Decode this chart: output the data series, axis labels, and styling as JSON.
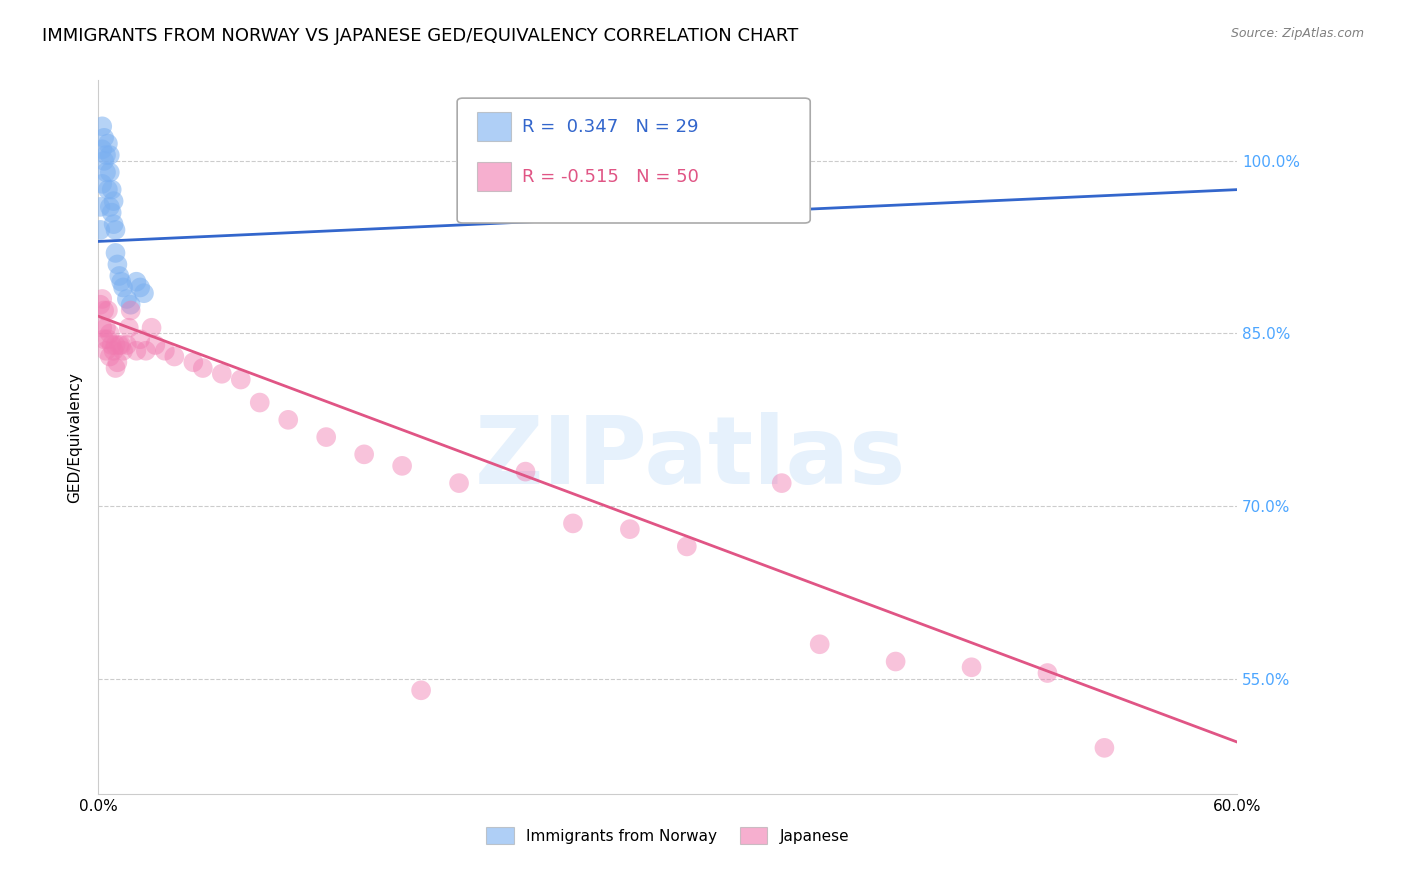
{
  "title": "IMMIGRANTS FROM NORWAY VS JAPANESE GED/EQUIVALENCY CORRELATION CHART",
  "source": "Source: ZipAtlas.com",
  "ylabel": "GED/Equivalency",
  "legend_norway_label": "Immigrants from Norway",
  "legend_japanese_label": "Japanese",
  "norway_R": 0.347,
  "norway_N": 29,
  "japanese_R": -0.515,
  "japanese_N": 50,
  "norway_color": "#7aaff0",
  "japanese_color": "#f07ab0",
  "norway_line_color": "#3366cc",
  "japanese_line_color": "#e05585",
  "right_axis_color": "#4da6ff",
  "watermark": "ZIPatlas",
  "background_color": "#ffffff",
  "grid_color": "#cccccc",
  "title_fontsize": 13,
  "label_fontsize": 11,
  "tick_fontsize": 11,
  "xlim": [
    0.0,
    0.6
  ],
  "ylim": [
    0.45,
    1.07
  ],
  "ytick_vals": [
    0.55,
    0.7,
    0.85,
    1.0
  ],
  "ytick_labels": [
    "55.0%",
    "70.0%",
    "85.0%",
    "100.0%"
  ],
  "norway_x": [
    0.001,
    0.001,
    0.002,
    0.002,
    0.002,
    0.003,
    0.003,
    0.004,
    0.004,
    0.005,
    0.005,
    0.006,
    0.006,
    0.006,
    0.007,
    0.007,
    0.008,
    0.008,
    0.009,
    0.009,
    0.01,
    0.011,
    0.012,
    0.013,
    0.015,
    0.017,
    0.02,
    0.022,
    0.024
  ],
  "norway_y": [
    0.96,
    0.94,
    1.03,
    1.01,
    0.98,
    1.02,
    1.0,
    1.005,
    0.99,
    1.015,
    0.975,
    1.005,
    0.99,
    0.96,
    0.975,
    0.955,
    0.965,
    0.945,
    0.94,
    0.92,
    0.91,
    0.9,
    0.895,
    0.89,
    0.88,
    0.875,
    0.895,
    0.89,
    0.885
  ],
  "japanese_x": [
    0.001,
    0.002,
    0.002,
    0.003,
    0.003,
    0.004,
    0.004,
    0.005,
    0.005,
    0.006,
    0.006,
    0.007,
    0.008,
    0.009,
    0.009,
    0.01,
    0.011,
    0.012,
    0.013,
    0.015,
    0.016,
    0.017,
    0.02,
    0.022,
    0.025,
    0.028,
    0.03,
    0.035,
    0.04,
    0.05,
    0.055,
    0.065,
    0.075,
    0.085,
    0.1,
    0.12,
    0.14,
    0.16,
    0.19,
    0.225,
    0.28,
    0.31,
    0.38,
    0.42,
    0.46,
    0.5,
    0.53,
    0.36,
    0.25,
    0.17
  ],
  "japanese_y": [
    0.875,
    0.88,
    0.855,
    0.87,
    0.845,
    0.855,
    0.835,
    0.87,
    0.845,
    0.85,
    0.83,
    0.84,
    0.835,
    0.84,
    0.82,
    0.825,
    0.84,
    0.84,
    0.835,
    0.84,
    0.855,
    0.87,
    0.835,
    0.845,
    0.835,
    0.855,
    0.84,
    0.835,
    0.83,
    0.825,
    0.82,
    0.815,
    0.81,
    0.79,
    0.775,
    0.76,
    0.745,
    0.735,
    0.72,
    0.73,
    0.68,
    0.665,
    0.58,
    0.565,
    0.56,
    0.555,
    0.49,
    0.72,
    0.685,
    0.54
  ]
}
